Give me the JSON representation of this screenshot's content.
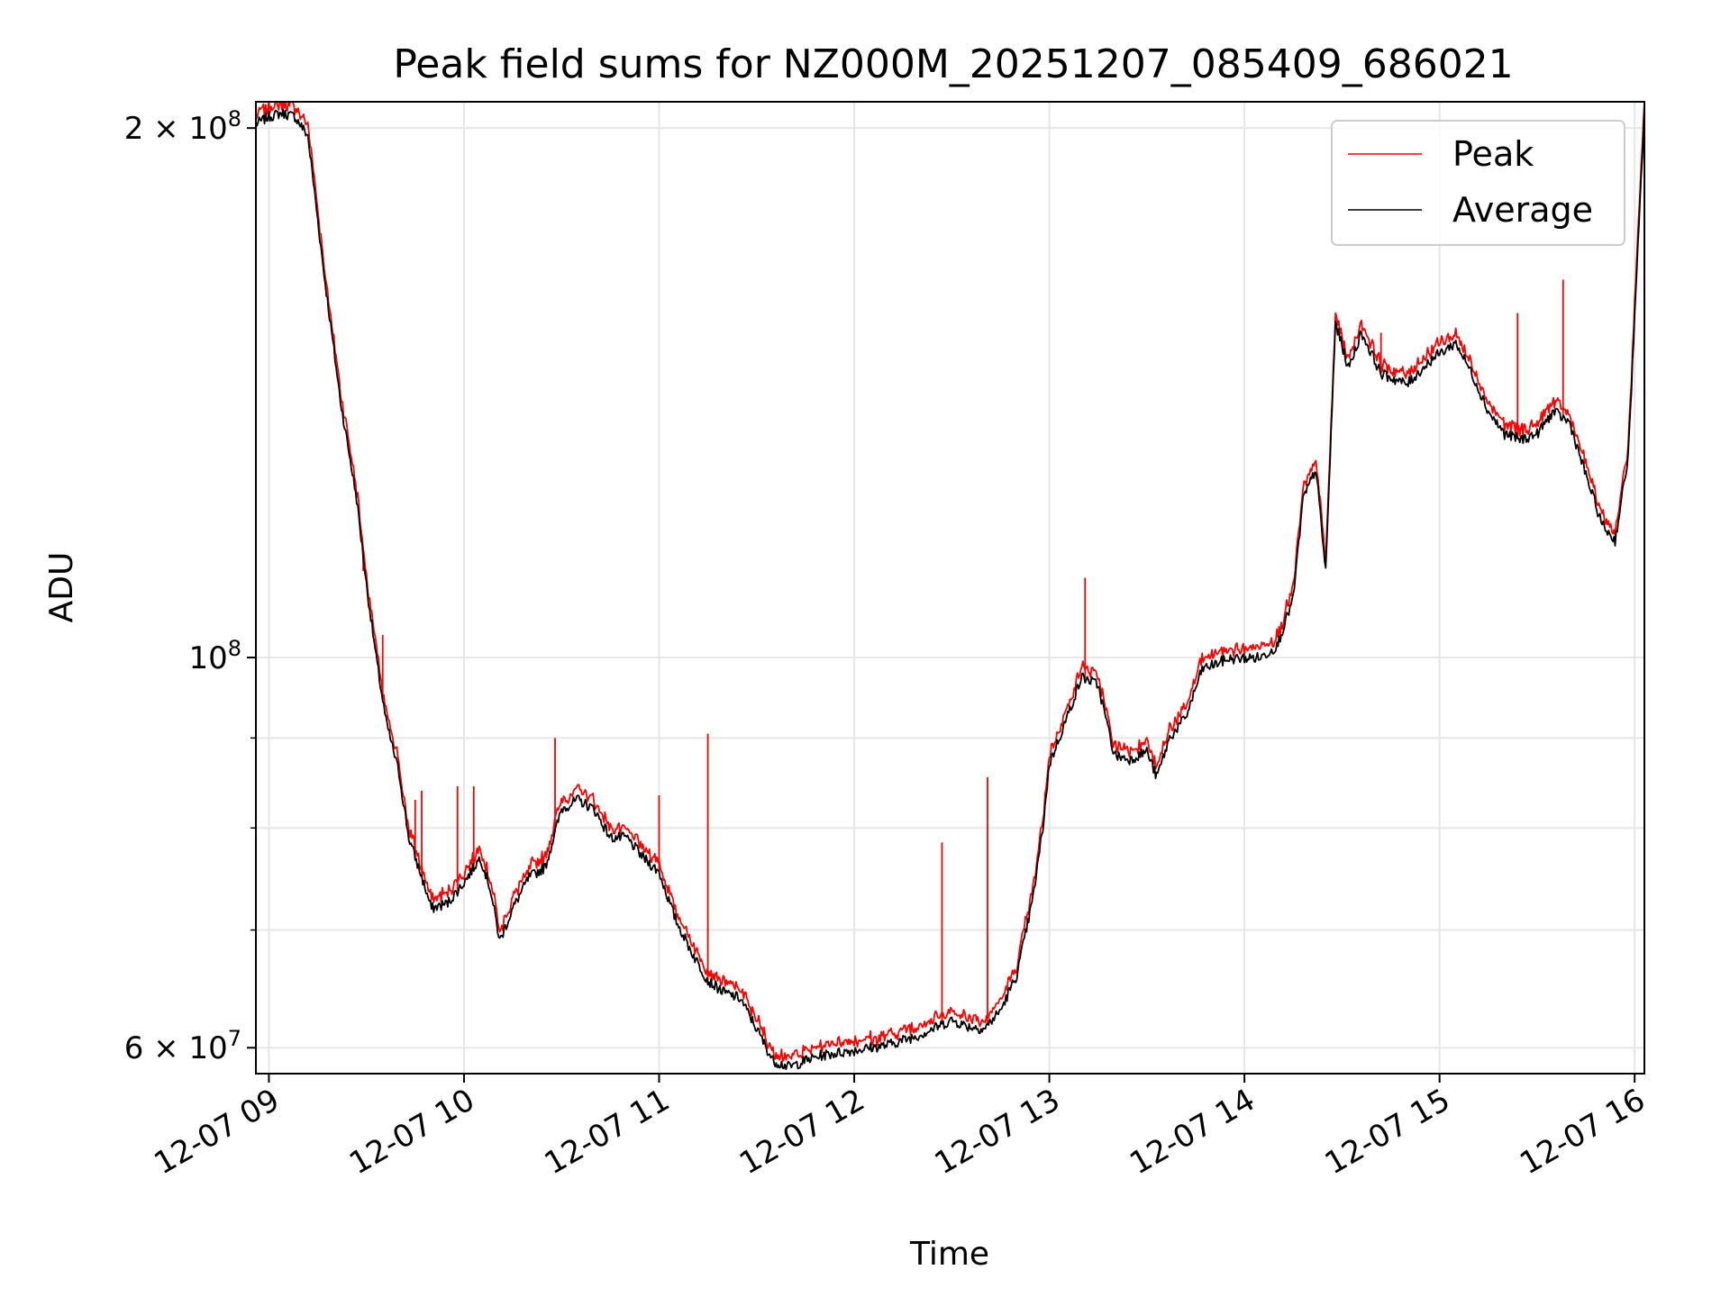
{
  "chart_data": {
    "type": "line",
    "title": "Peak field sums for NZ000M_20251207_085409_686021",
    "xlabel": "Time",
    "ylabel": "ADU",
    "yscale": "log",
    "xlim": [
      "2025-12-07 08:56",
      "2025-12-07 16:03"
    ],
    "ylim": [
      58000000,
      207000000
    ],
    "grid": true,
    "legend": "top-right",
    "x_ticks": [
      {
        "t": "2025-12-07 09:00",
        "label": "12-07 09"
      },
      {
        "t": "2025-12-07 10:00",
        "label": "12-07 10"
      },
      {
        "t": "2025-12-07 11:00",
        "label": "12-07 11"
      },
      {
        "t": "2025-12-07 12:00",
        "label": "12-07 12"
      },
      {
        "t": "2025-12-07 13:00",
        "label": "12-07 13"
      },
      {
        "t": "2025-12-07 14:00",
        "label": "12-07 14"
      },
      {
        "t": "2025-12-07 15:00",
        "label": "12-07 15"
      },
      {
        "t": "2025-12-07 16:00",
        "label": "12-07 16"
      }
    ],
    "y_ticks": [
      {
        "value": 60000000,
        "base": "6 × 10",
        "exp": "7"
      },
      {
        "value": 100000000,
        "base": "10",
        "exp": "8"
      },
      {
        "value": 200000000,
        "base": "2 × 10",
        "exp": "8"
      }
    ],
    "y_minor_ticks": [
      70000000,
      80000000,
      90000000
    ],
    "series": [
      {
        "name": "Average",
        "color": "#000000",
        "points": [
          [
            "2025-12-07 08:56",
            201000000
          ],
          [
            "2025-12-07 09:00",
            203000000
          ],
          [
            "2025-12-07 09:04",
            204000000
          ],
          [
            "2025-12-07 09:08",
            203000000
          ],
          [
            "2025-12-07 09:12",
            198000000
          ],
          [
            "2025-12-07 09:17",
            165000000
          ],
          [
            "2025-12-07 09:22",
            140000000
          ],
          [
            "2025-12-07 09:27",
            123000000
          ],
          [
            "2025-12-07 09:30",
            110000000
          ],
          [
            "2025-12-07 09:33",
            100000000
          ],
          [
            "2025-12-07 09:36",
            92000000
          ],
          [
            "2025-12-07 09:40",
            86000000
          ],
          [
            "2025-12-07 09:43",
            79000000
          ],
          [
            "2025-12-07 09:47",
            75000000
          ],
          [
            "2025-12-07 09:50",
            72000000
          ],
          [
            "2025-12-07 09:55",
            72500000
          ],
          [
            "2025-12-07 10:00",
            74500000
          ],
          [
            "2025-12-07 10:05",
            77000000
          ],
          [
            "2025-12-07 10:08",
            74000000
          ],
          [
            "2025-12-07 10:11",
            69000000
          ],
          [
            "2025-12-07 10:15",
            72000000
          ],
          [
            "2025-12-07 10:20",
            75000000
          ],
          [
            "2025-12-07 10:25",
            76000000
          ],
          [
            "2025-12-07 10:30",
            82000000
          ],
          [
            "2025-12-07 10:35",
            83000000
          ],
          [
            "2025-12-07 10:40",
            82000000
          ],
          [
            "2025-12-07 10:45",
            79000000
          ],
          [
            "2025-12-07 10:50",
            79000000
          ],
          [
            "2025-12-07 10:55",
            77000000
          ],
          [
            "2025-12-07 11:00",
            75500000
          ],
          [
            "2025-12-07 11:05",
            71000000
          ],
          [
            "2025-12-07 11:10",
            68000000
          ],
          [
            "2025-12-07 11:15",
            65500000
          ],
          [
            "2025-12-07 11:20",
            64500000
          ],
          [
            "2025-12-07 11:25",
            64000000
          ],
          [
            "2025-12-07 11:30",
            61500000
          ],
          [
            "2025-12-07 11:35",
            59000000
          ],
          [
            "2025-12-07 11:40",
            58500000
          ],
          [
            "2025-12-07 11:45",
            59000000
          ],
          [
            "2025-12-07 11:50",
            59400000
          ],
          [
            "2025-12-07 12:00",
            59800000
          ],
          [
            "2025-12-07 12:10",
            60200000
          ],
          [
            "2025-12-07 12:20",
            61000000
          ],
          [
            "2025-12-07 12:30",
            62200000
          ],
          [
            "2025-12-07 12:35",
            61700000
          ],
          [
            "2025-12-07 12:40",
            61500000
          ],
          [
            "2025-12-07 12:45",
            63000000
          ],
          [
            "2025-12-07 12:50",
            66000000
          ],
          [
            "2025-12-07 12:55",
            73000000
          ],
          [
            "2025-12-07 12:58",
            80000000
          ],
          [
            "2025-12-07 13:00",
            87000000
          ],
          [
            "2025-12-07 13:05",
            92000000
          ],
          [
            "2025-12-07 13:10",
            97500000
          ],
          [
            "2025-12-07 13:15",
            96500000
          ],
          [
            "2025-12-07 13:20",
            88000000
          ],
          [
            "2025-12-07 13:25",
            87500000
          ],
          [
            "2025-12-07 13:30",
            88500000
          ],
          [
            "2025-12-07 13:33",
            85500000
          ],
          [
            "2025-12-07 13:37",
            90000000
          ],
          [
            "2025-12-07 13:42",
            92500000
          ],
          [
            "2025-12-07 13:47",
            98500000
          ],
          [
            "2025-12-07 13:55",
            99800000
          ],
          [
            "2025-12-07 14:05",
            100000000
          ],
          [
            "2025-12-07 14:10",
            101500000
          ],
          [
            "2025-12-07 14:15",
            108000000
          ],
          [
            "2025-12-07 14:18",
            123000000
          ],
          [
            "2025-12-07 14:22",
            128000000
          ],
          [
            "2025-12-07 14:25",
            112000000
          ],
          [
            "2025-12-07 14:28",
            155000000
          ],
          [
            "2025-12-07 14:32",
            146000000
          ],
          [
            "2025-12-07 14:36",
            153000000
          ],
          [
            "2025-12-07 14:42",
            145000000
          ],
          [
            "2025-12-07 14:50",
            143000000
          ],
          [
            "2025-12-07 14:58",
            148000000
          ],
          [
            "2025-12-07 15:05",
            151000000
          ],
          [
            "2025-12-07 15:10",
            145000000
          ],
          [
            "2025-12-07 15:15",
            138000000
          ],
          [
            "2025-12-07 15:20",
            134000000
          ],
          [
            "2025-12-07 15:25",
            133000000
          ],
          [
            "2025-12-07 15:30",
            134000000
          ],
          [
            "2025-12-07 15:35",
            138000000
          ],
          [
            "2025-12-07 15:40",
            136000000
          ],
          [
            "2025-12-07 15:45",
            127000000
          ],
          [
            "2025-12-07 15:50",
            119000000
          ],
          [
            "2025-12-07 15:54",
            116500000
          ],
          [
            "2025-12-07 15:58",
            130000000
          ],
          [
            "2025-12-07 16:03",
            205000000
          ]
        ]
      },
      {
        "name": "Peak",
        "color": "#ff0000",
        "spikes": [
          [
            "2025-12-07 09:29",
            112000000
          ],
          [
            "2025-12-07 09:35",
            103000000
          ],
          [
            "2025-12-07 09:45",
            83000000
          ],
          [
            "2025-12-07 09:47",
            84000000
          ],
          [
            "2025-12-07 09:58",
            84500000
          ],
          [
            "2025-12-07 10:03",
            84500000
          ],
          [
            "2025-12-07 10:28",
            90000000
          ],
          [
            "2025-12-07 11:00",
            83500000
          ],
          [
            "2025-12-07 11:15",
            90500000
          ],
          [
            "2025-12-07 12:27",
            78500000
          ],
          [
            "2025-12-07 12:41",
            85500000
          ],
          [
            "2025-12-07 13:11",
            111000000
          ],
          [
            "2025-12-07 14:42",
            153000000
          ],
          [
            "2025-12-07 15:24",
            157000000
          ],
          [
            "2025-12-07 15:38",
            164000000
          ],
          [
            "2025-12-07 15:45",
            127000000
          ]
        ]
      }
    ]
  }
}
